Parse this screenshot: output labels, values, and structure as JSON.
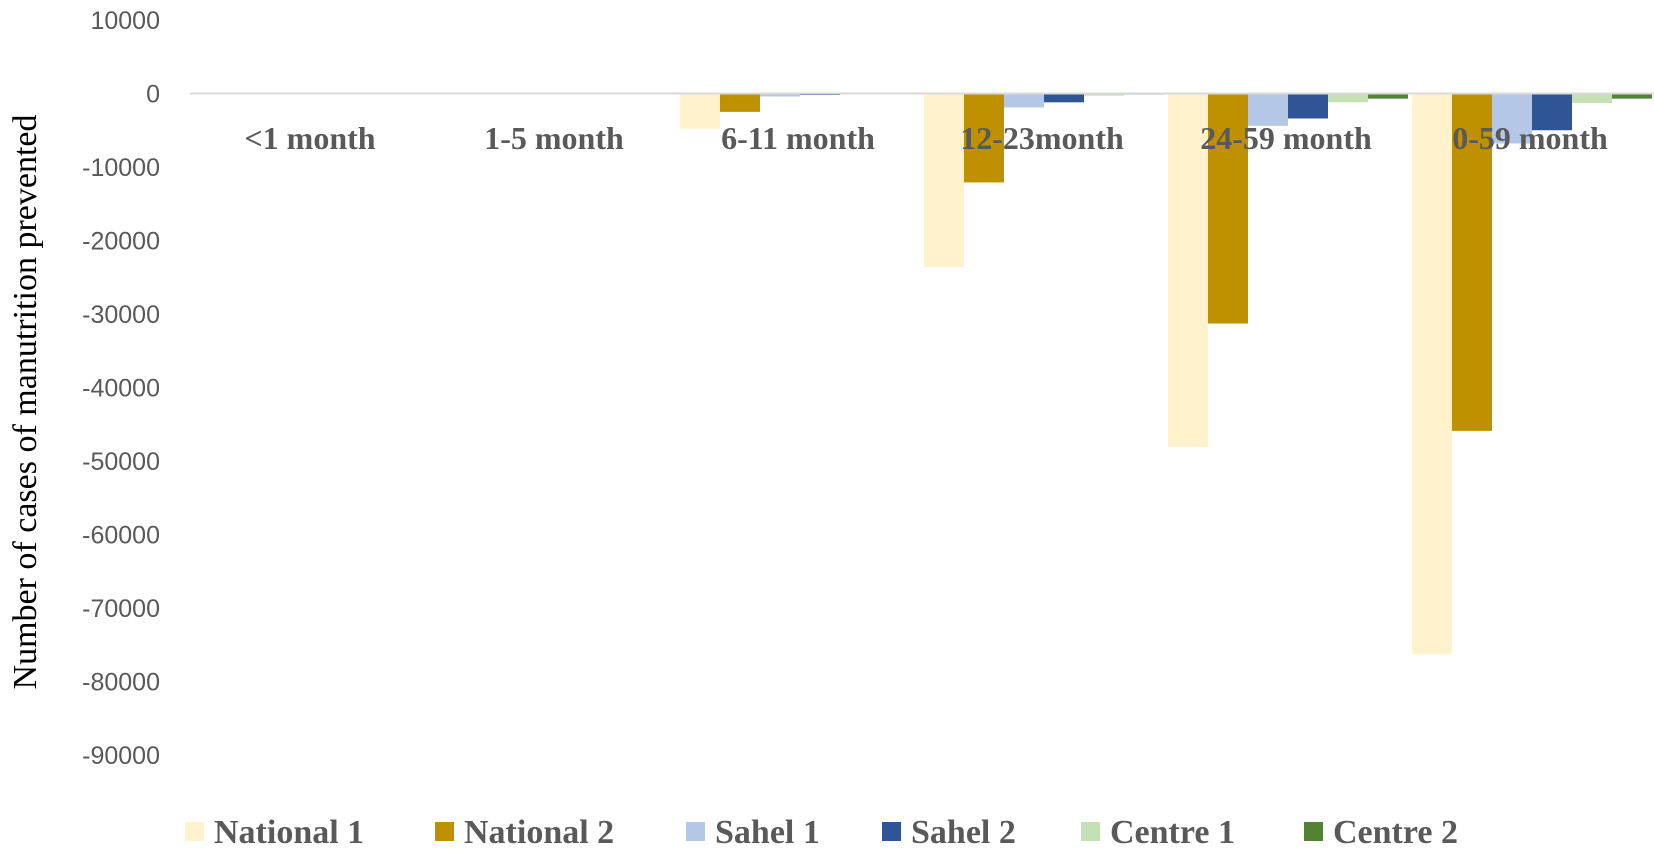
{
  "chart_data": {
    "type": "bar",
    "title": "",
    "xlabel": "",
    "ylabel": "Number of cases of manutrition prevented",
    "ylim": [
      -90000,
      10000
    ],
    "yticks": [
      10000,
      0,
      -10000,
      -20000,
      -30000,
      -40000,
      -50000,
      -60000,
      -70000,
      -80000,
      -90000
    ],
    "grid": false,
    "legend": "bottom",
    "categories": [
      "<1 month",
      "1-5 month",
      "6-11 month",
      "12-23month",
      "24-59 month",
      "0-59 month"
    ],
    "series": [
      {
        "name": "National 1",
        "color": "#fff2cc",
        "values": [
          0,
          0,
          -4800,
          -23600,
          -48100,
          -76300
        ]
      },
      {
        "name": "National 2",
        "color": "#bf9000",
        "values": [
          0,
          0,
          -2500,
          -12100,
          -31300,
          -45900
        ]
      },
      {
        "name": "Sahel 1",
        "color": "#b4c7e7",
        "values": [
          0,
          0,
          -400,
          -1900,
          -4400,
          -6800
        ]
      },
      {
        "name": "Sahel 2",
        "color": "#2f5597",
        "values": [
          0,
          0,
          -200,
          -1200,
          -3400,
          -5000
        ]
      },
      {
        "name": "Centre 1",
        "color": "#c5e0b4",
        "values": [
          0,
          0,
          -100,
          -300,
          -1200,
          -1300
        ]
      },
      {
        "name": "Centre 2",
        "color": "#548235",
        "values": [
          0,
          0,
          -50,
          -150,
          -700,
          -700
        ]
      }
    ]
  }
}
